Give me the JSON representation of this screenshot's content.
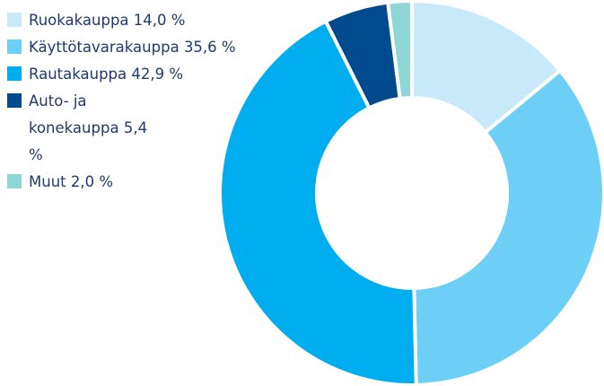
{
  "chart_data": {
    "type": "donut",
    "categories": [
      "Ruokakauppa",
      "Käyttötavarakauppa",
      "Rautakauppa",
      "Auto- ja konekauppa",
      "Muut"
    ],
    "values": [
      14.0,
      35.6,
      42.9,
      5.4,
      2.0
    ],
    "value_labels": [
      "14,0 %",
      "35,6 %",
      "42,9 %",
      "5,4 %",
      "2,0 %"
    ],
    "colors": [
      "#c8e9f9",
      "#6dcff6",
      "#00aeef",
      "#004b8d",
      "#8fd6d6"
    ],
    "legend": "top-left"
  }
}
